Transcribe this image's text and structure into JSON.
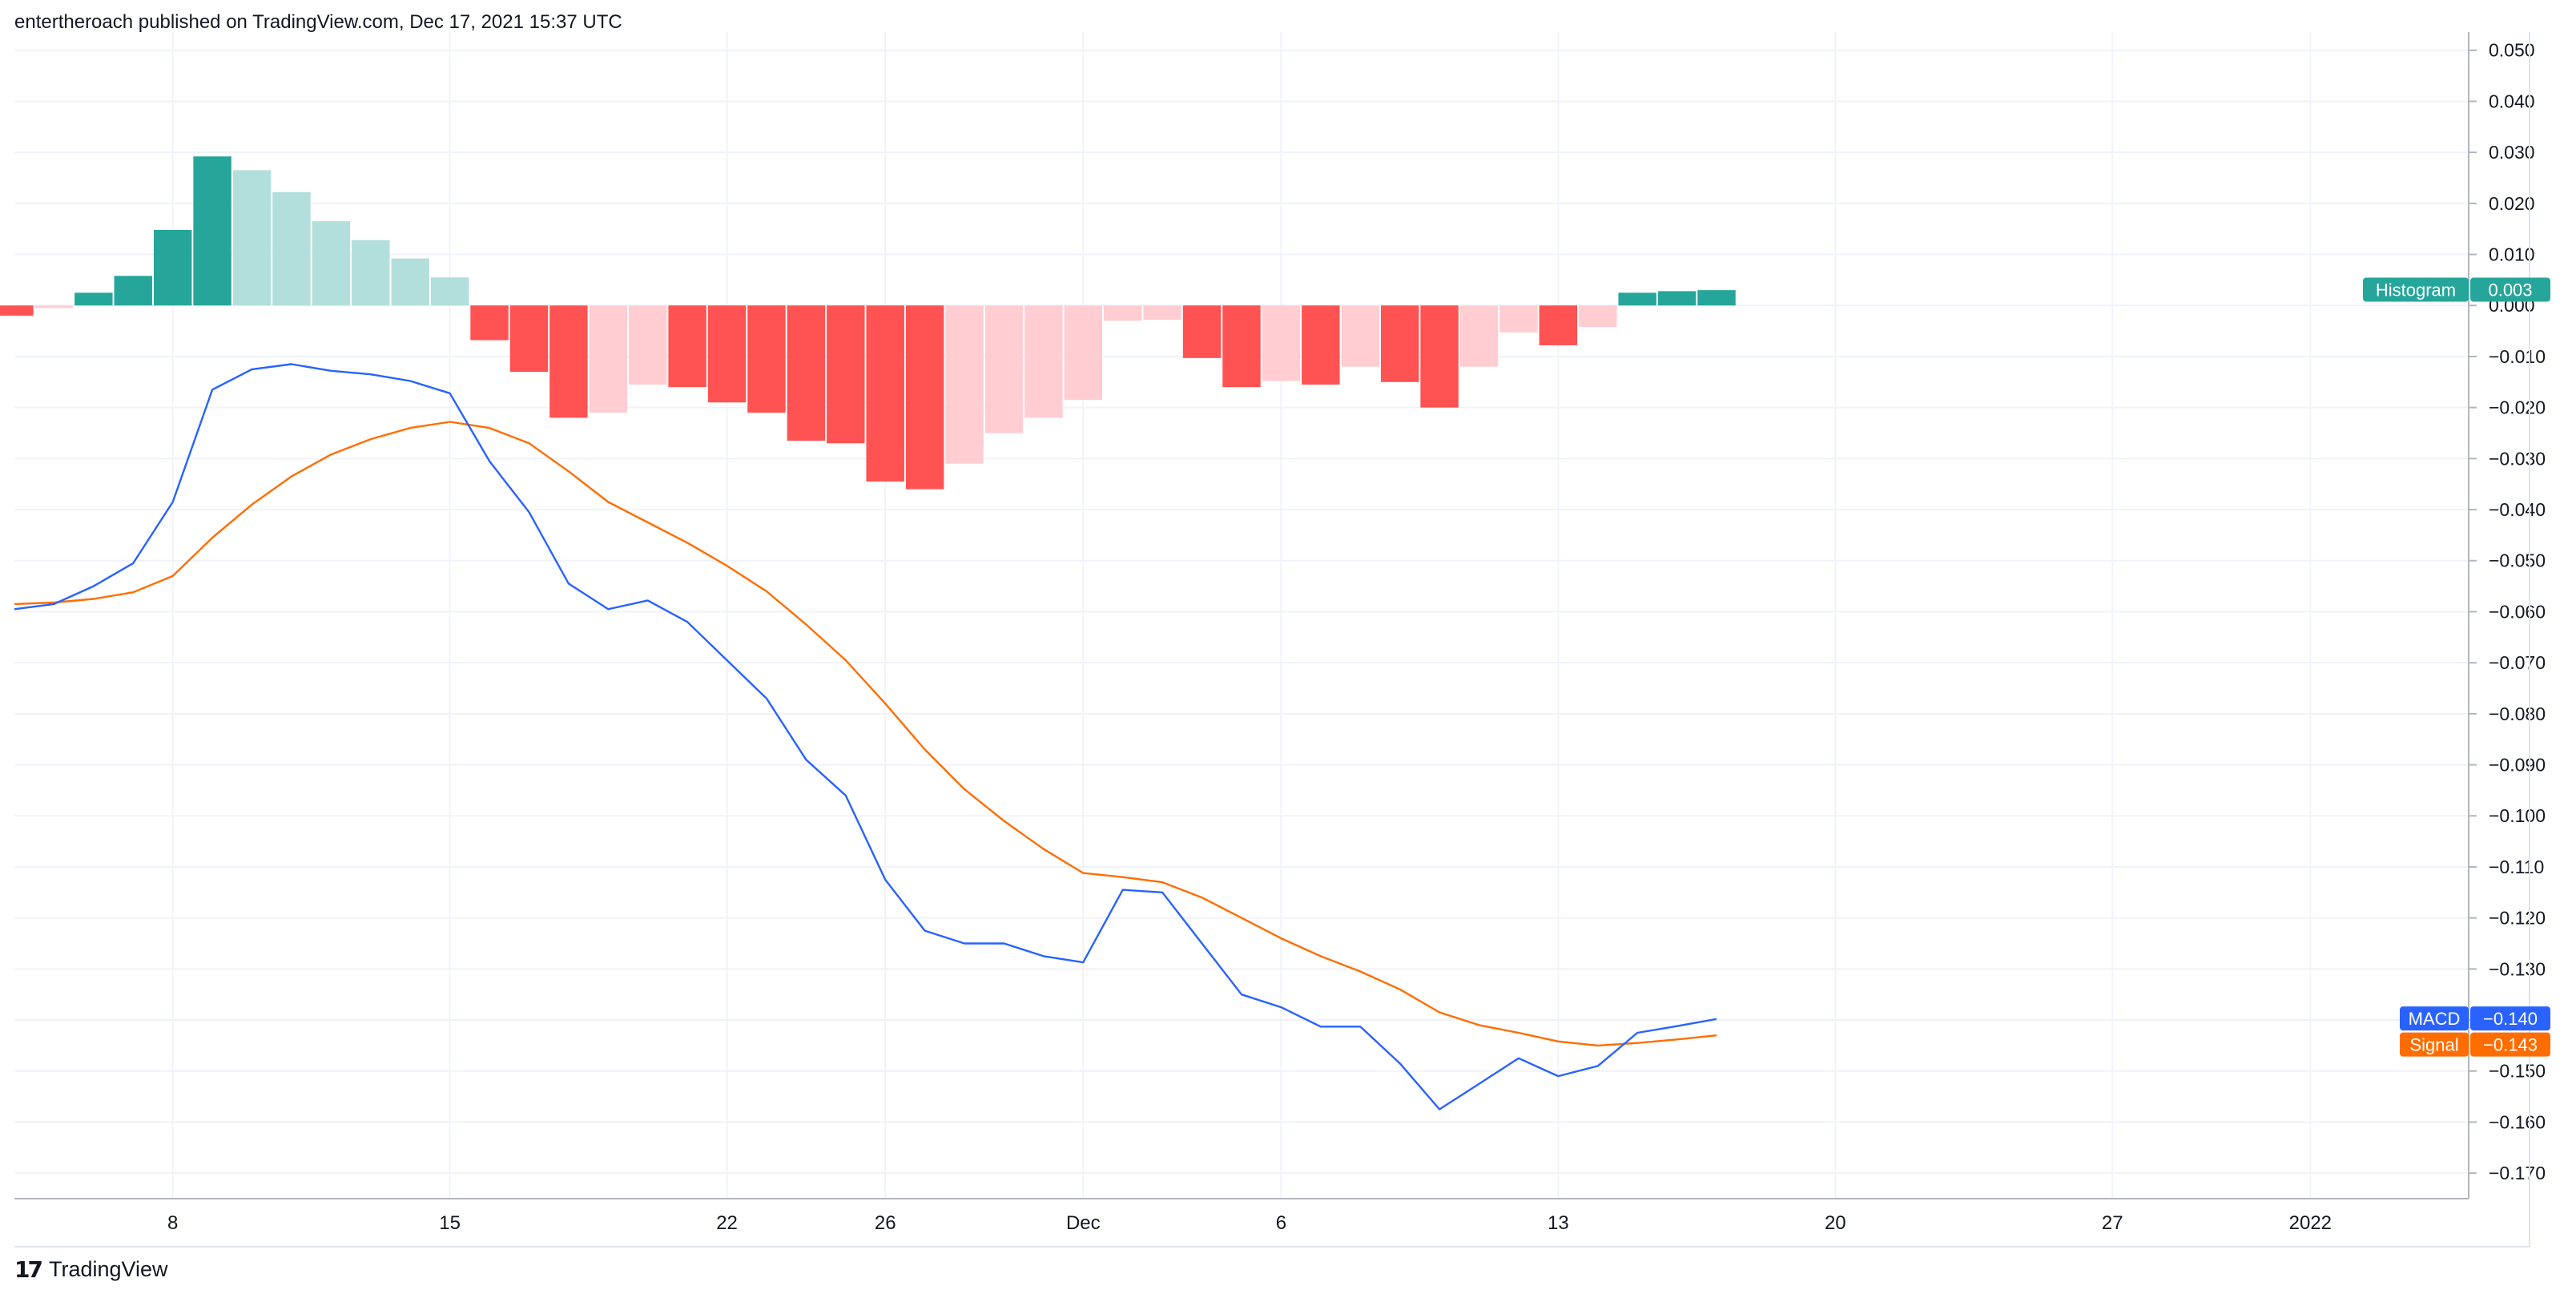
{
  "header": {
    "published_text": "entertheroach published on TradingView.com, Dec 17, 2021 15:37 UTC"
  },
  "footer": {
    "logo_icon": "tradingview-logo-icon",
    "logo_text": "TradingView"
  },
  "colors": {
    "macd": "#2962ff",
    "signal": "#ff6d00",
    "hist_pos_strong": "#26a69a",
    "hist_pos_weak": "#b2dfdb",
    "hist_neg_strong": "#ff5252",
    "hist_neg_weak": "#ffcdd2",
    "grid": "#f0f3fa",
    "axis_text": "#131722"
  },
  "chart_data": {
    "type": "line",
    "indicator": "MACD",
    "ylim": [
      -0.175,
      0.052
    ],
    "y_ticks": [
      "0.050",
      "0.040",
      "0.030",
      "0.020",
      "0.010",
      "0.000",
      "−0.010",
      "−0.020",
      "−0.030",
      "−0.040",
      "−0.050",
      "−0.060",
      "−0.070",
      "−0.080",
      "−0.090",
      "−0.100",
      "−0.110",
      "−0.120",
      "−0.130",
      "−0.140",
      "−0.150",
      "−0.160",
      "−0.170"
    ],
    "x_ticks": [
      {
        "label": "8",
        "date": "2021-11-08"
      },
      {
        "label": "15",
        "date": "2021-11-15"
      },
      {
        "label": "22",
        "date": "2021-11-22"
      },
      {
        "label": "26",
        "date": "2021-11-26"
      },
      {
        "label": "Dec",
        "date": "2021-12-01"
      },
      {
        "label": "6",
        "date": "2021-12-06"
      },
      {
        "label": "13",
        "date": "2021-12-13"
      },
      {
        "label": "20",
        "date": "2021-12-20"
      },
      {
        "label": "27",
        "date": "2021-12-27"
      },
      {
        "label": "2022",
        "date": "2022-01-01"
      }
    ],
    "x_domain": [
      "2021-11-04",
      "2022-01-05"
    ],
    "dates": [
      "2021-11-04",
      "2021-11-05",
      "2021-11-06",
      "2021-11-07",
      "2021-11-08",
      "2021-11-09",
      "2021-11-10",
      "2021-11-11",
      "2021-11-12",
      "2021-11-13",
      "2021-11-14",
      "2021-11-15",
      "2021-11-16",
      "2021-11-17",
      "2021-11-18",
      "2021-11-19",
      "2021-11-20",
      "2021-11-21",
      "2021-11-22",
      "2021-11-23",
      "2021-11-24",
      "2021-11-25",
      "2021-11-26",
      "2021-11-27",
      "2021-11-28",
      "2021-11-29",
      "2021-11-30",
      "2021-12-01",
      "2021-12-02",
      "2021-12-03",
      "2021-12-04",
      "2021-12-05",
      "2021-12-06",
      "2021-12-07",
      "2021-12-08",
      "2021-12-09",
      "2021-12-10",
      "2021-12-11",
      "2021-12-12",
      "2021-12-13",
      "2021-12-14",
      "2021-12-15",
      "2021-12-16",
      "2021-12-17"
    ],
    "series": [
      {
        "name": "MACD",
        "values": [
          -0.0595,
          -0.0585,
          -0.055,
          -0.0505,
          -0.0385,
          -0.0165,
          -0.0125,
          -0.0115,
          -0.0128,
          -0.0135,
          -0.0148,
          -0.0172,
          -0.0305,
          -0.0405,
          -0.0545,
          -0.0595,
          -0.0578,
          -0.062,
          -0.0695,
          -0.077,
          -0.089,
          -0.096,
          -0.1125,
          -0.1225,
          -0.125,
          -0.125,
          -0.1275,
          -0.1287,
          -0.1145,
          -0.115,
          -0.125,
          -0.135,
          -0.1375,
          -0.1413,
          -0.1413,
          -0.1485,
          -0.1575,
          -0.1525,
          -0.1475,
          -0.151,
          -0.149,
          -0.1425,
          -0.1412,
          -0.1398
        ]
      },
      {
        "name": "Signal",
        "values": [
          -0.0585,
          -0.0582,
          -0.0575,
          -0.0562,
          -0.053,
          -0.0455,
          -0.039,
          -0.0335,
          -0.0292,
          -0.0262,
          -0.024,
          -0.0228,
          -0.024,
          -0.027,
          -0.0325,
          -0.0385,
          -0.0425,
          -0.0465,
          -0.051,
          -0.056,
          -0.0625,
          -0.0695,
          -0.078,
          -0.087,
          -0.0948,
          -0.101,
          -0.1065,
          -0.1112,
          -0.112,
          -0.113,
          -0.116,
          -0.12,
          -0.124,
          -0.1275,
          -0.1305,
          -0.134,
          -0.1385,
          -0.141,
          -0.1425,
          -0.1442,
          -0.145,
          -0.1445,
          -0.1438,
          -0.143
        ]
      },
      {
        "name": "Histogram",
        "values": [
          -0.002,
          -0.0005,
          0.0025,
          0.0058,
          0.0148,
          0.0292,
          0.0265,
          0.0222,
          0.0165,
          0.0128,
          0.0092,
          0.0055,
          -0.0068,
          -0.013,
          -0.022,
          -0.021,
          -0.0155,
          -0.016,
          -0.019,
          -0.021,
          -0.0265,
          -0.027,
          -0.0345,
          -0.036,
          -0.031,
          -0.025,
          -0.022,
          -0.0185,
          -0.003,
          -0.0028,
          -0.0103,
          -0.016,
          -0.0148,
          -0.0155,
          -0.012,
          -0.015,
          -0.02,
          -0.012,
          -0.0053,
          -0.0078,
          -0.0042,
          0.0025,
          0.0028,
          0.003
        ]
      }
    ],
    "last_value_labels": [
      {
        "name": "Histogram",
        "value": "0.003"
      },
      {
        "name": "MACD",
        "value": "−0.140"
      },
      {
        "name": "Signal",
        "value": "−0.143"
      }
    ],
    "grid": true
  }
}
